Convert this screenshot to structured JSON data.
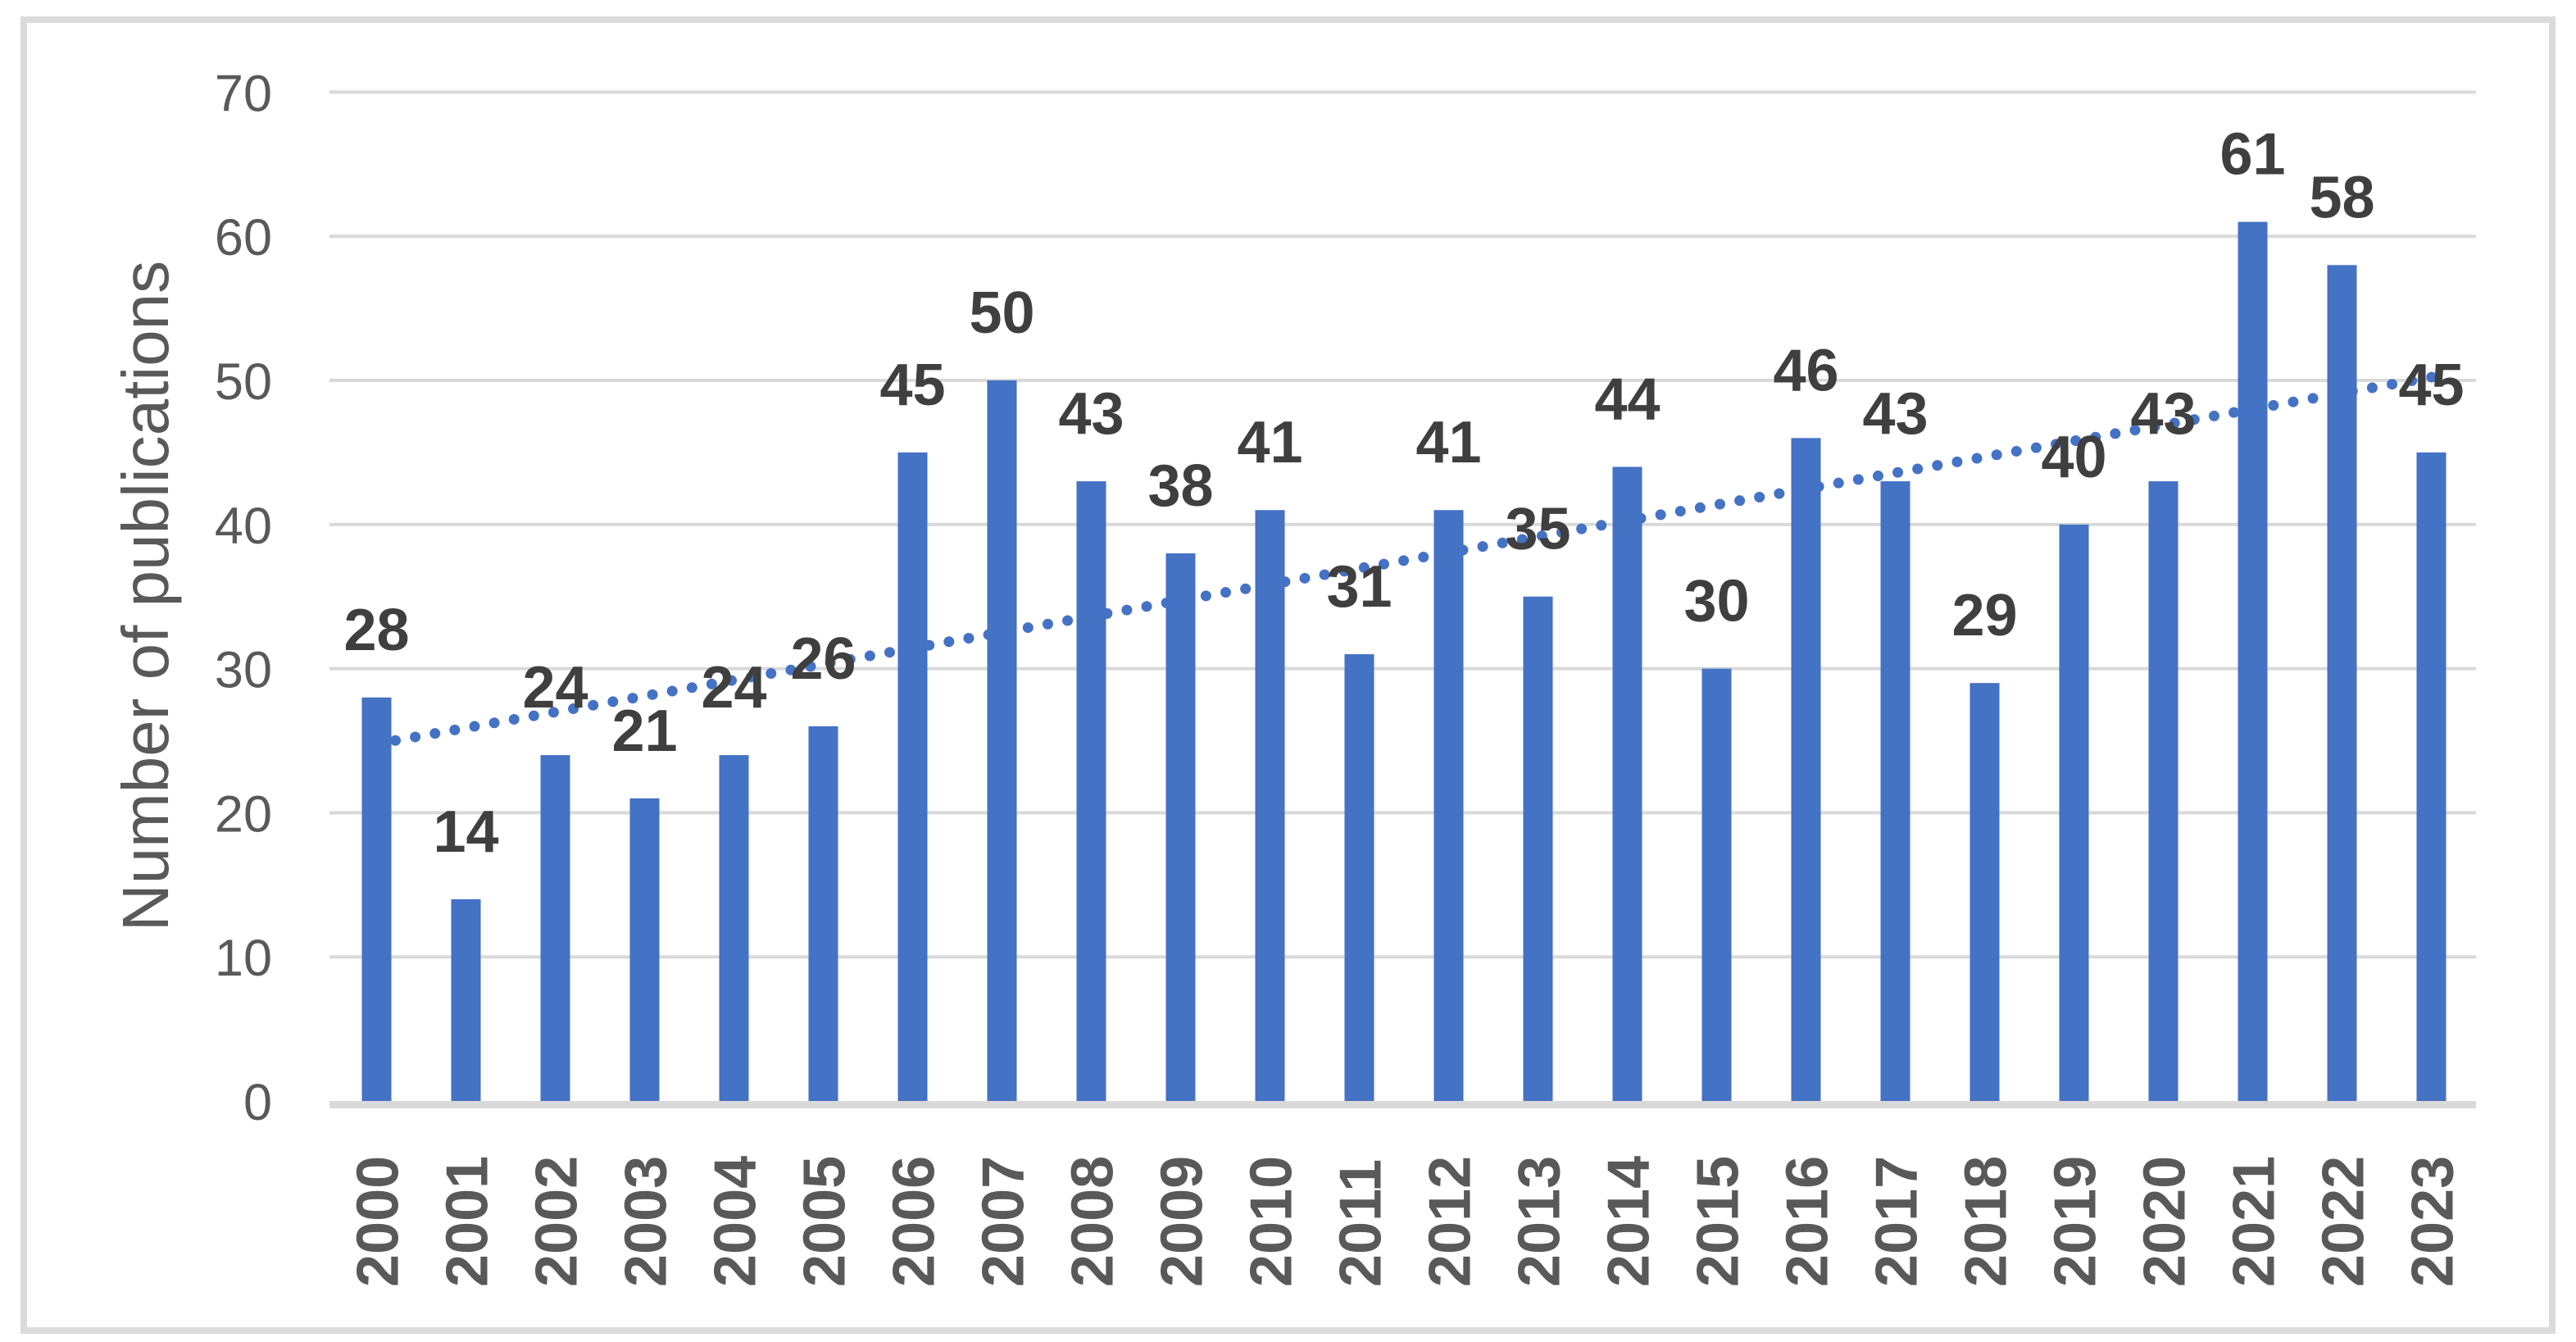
{
  "chart_data": {
    "type": "bar",
    "title": "",
    "xlabel": "",
    "ylabel": "Number of publications",
    "categories": [
      "2000",
      "2001",
      "2002",
      "2003",
      "2004",
      "2005",
      "2006",
      "2007",
      "2008",
      "2009",
      "2010",
      "2011",
      "2012",
      "2013",
      "2014",
      "2015",
      "2016",
      "2017",
      "2018",
      "2019",
      "2020",
      "2021",
      "2022",
      "2023"
    ],
    "values": [
      28,
      14,
      24,
      21,
      24,
      26,
      45,
      50,
      43,
      38,
      41,
      31,
      41,
      35,
      44,
      30,
      46,
      43,
      29,
      40,
      43,
      61,
      58,
      45
    ],
    "ylim": [
      0,
      70
    ],
    "yticks": [
      0,
      10,
      20,
      30,
      40,
      50,
      60,
      70
    ],
    "grid": "horizontal",
    "legend": "none",
    "data_labels": true,
    "trendline": {
      "type": "linear",
      "style": "dotted",
      "start_value": 24.8,
      "end_value": 50.2
    },
    "colors": {
      "bar": "#4472C4",
      "trendline": "#4472C4",
      "gridline": "#D9D9D9",
      "axis_line": "#D9D9D9",
      "frame_border": "#DBDBDB",
      "tick_label": "#595959",
      "axis_title": "#595959",
      "data_label": "#3F3F3F",
      "background": "#FFFFFF"
    }
  }
}
